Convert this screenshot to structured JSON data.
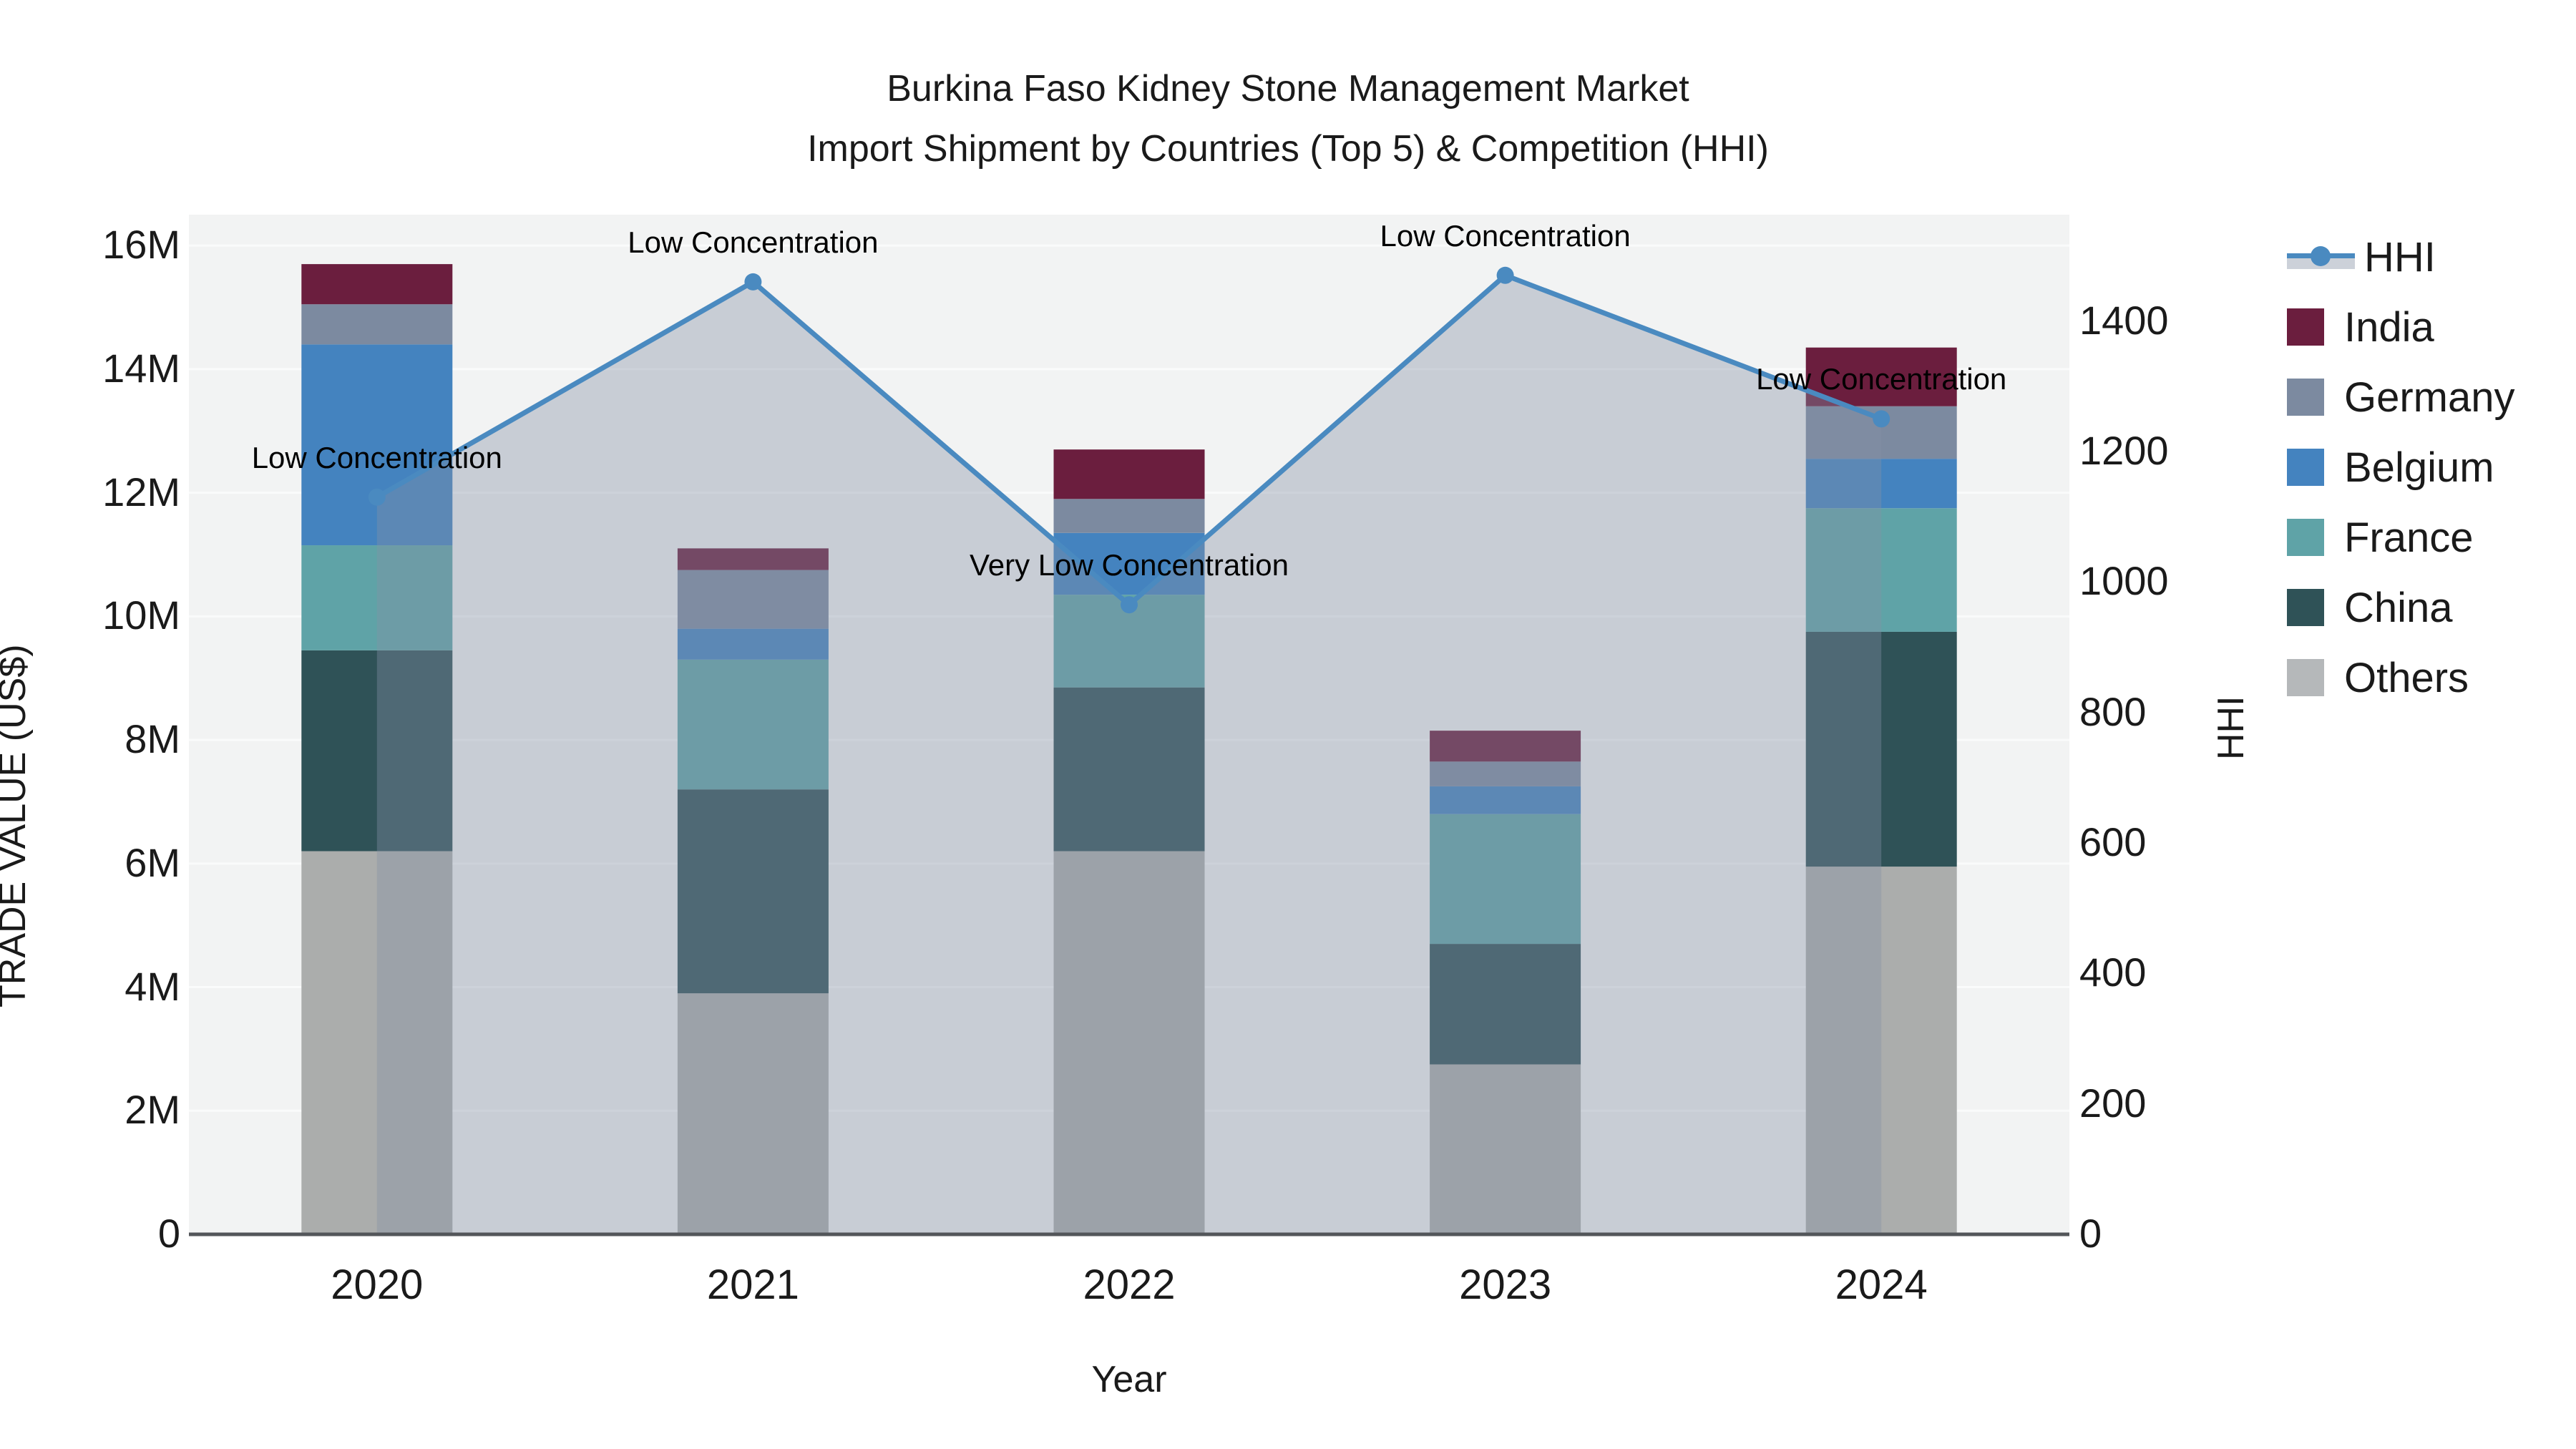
{
  "title_line1": "Burkina Faso Kidney Stone Management Market",
  "title_line2": "Import Shipment by Countries (Top 5) & Competition (HHI)",
  "axes": {
    "x_title": "Year",
    "y_left_title": "TRADE VALUE (US$)",
    "y_right_title": "HHI",
    "y_left_tick_labels": [
      "0",
      "2M",
      "4M",
      "6M",
      "8M",
      "10M",
      "12M",
      "14M",
      "16M"
    ],
    "y_left_tick_values": [
      0,
      2,
      4,
      6,
      8,
      10,
      12,
      14,
      16
    ],
    "y_left_max": 16.5,
    "y_right_tick_labels": [
      "0",
      "200",
      "400",
      "600",
      "800",
      "1000",
      "1200",
      "1400"
    ],
    "y_right_tick_values": [
      0,
      200,
      400,
      600,
      800,
      1000,
      1200,
      1400
    ],
    "y_right_max": 1563,
    "grid": "horizontal major gridlines, light on gray plot background"
  },
  "chart_data": {
    "type": "bar",
    "subtype": "stacked bars with HHI line + shaded area overlay on secondary axis",
    "title": "Burkina Faso Kidney Stone Management Market Import Shipment by Countries (Top 5) & Competition (HHI)",
    "xlabel": "Year",
    "ylabel": "TRADE VALUE (US$)",
    "ylabel_right": "HHI",
    "categories": [
      "2020",
      "2021",
      "2022",
      "2023",
      "2024"
    ],
    "unit": "US$ millions",
    "stack_order_bottom_to_top": [
      "Others",
      "China",
      "France",
      "Belgium",
      "Germany",
      "India"
    ],
    "series": [
      {
        "name": "Others",
        "color": "#abadac",
        "values": [
          6.2,
          3.9,
          6.2,
          2.75,
          5.95
        ]
      },
      {
        "name": "China",
        "color": "#2f5257",
        "values": [
          3.25,
          3.3,
          2.65,
          1.95,
          3.8
        ]
      },
      {
        "name": "France",
        "color": "#5fa3a7",
        "values": [
          1.7,
          2.1,
          1.5,
          2.1,
          2.0
        ]
      },
      {
        "name": "Belgium",
        "color": "#4483bf",
        "values": [
          3.25,
          0.5,
          1.0,
          0.45,
          0.8
        ]
      },
      {
        "name": "Germany",
        "color": "#7c8aa0",
        "values": [
          0.65,
          0.95,
          0.55,
          0.4,
          0.85
        ]
      },
      {
        "name": "India",
        "color": "#6b1e3e",
        "values": [
          0.65,
          0.35,
          0.8,
          0.5,
          0.95
        ]
      }
    ],
    "bar_totals": [
      15.7,
      11.1,
      12.7,
      8.15,
      14.35
    ],
    "hhi_line": {
      "name": "HHI",
      "axis": "right",
      "color": "#4a8ac0",
      "area_fill": "rgba(132,145,166,0.38)",
      "values": [
        1130,
        1460,
        965,
        1470,
        1250
      ]
    },
    "annotations": [
      {
        "category": "2020",
        "text": "Low Concentration"
      },
      {
        "category": "2021",
        "text": "Low Concentration"
      },
      {
        "category": "2022",
        "text": "Very Low Concentration"
      },
      {
        "category": "2023",
        "text": "Low Concentration"
      },
      {
        "category": "2024",
        "text": "Low Concentration"
      }
    ],
    "legend_position": "right"
  },
  "legend": {
    "items": [
      {
        "label": "HHI",
        "type": "line",
        "color": "#4a8ac0",
        "band": "#ccd1d9"
      },
      {
        "label": "India",
        "type": "square",
        "color": "#6b1e3e"
      },
      {
        "label": "Germany",
        "type": "square",
        "color": "#7c8aa0"
      },
      {
        "label": "Belgium",
        "type": "square",
        "color": "#4483bf"
      },
      {
        "label": "France",
        "type": "square",
        "color": "#5fa3a7"
      },
      {
        "label": "China",
        "type": "square",
        "color": "#2f5257"
      },
      {
        "label": "Others",
        "type": "square",
        "color": "#b5b8ba"
      }
    ]
  },
  "colors": {
    "plot_background": "#f2f3f3",
    "gridline": "#fafbfb",
    "axis_line": "#53565a",
    "text": "#1a1a1a"
  }
}
